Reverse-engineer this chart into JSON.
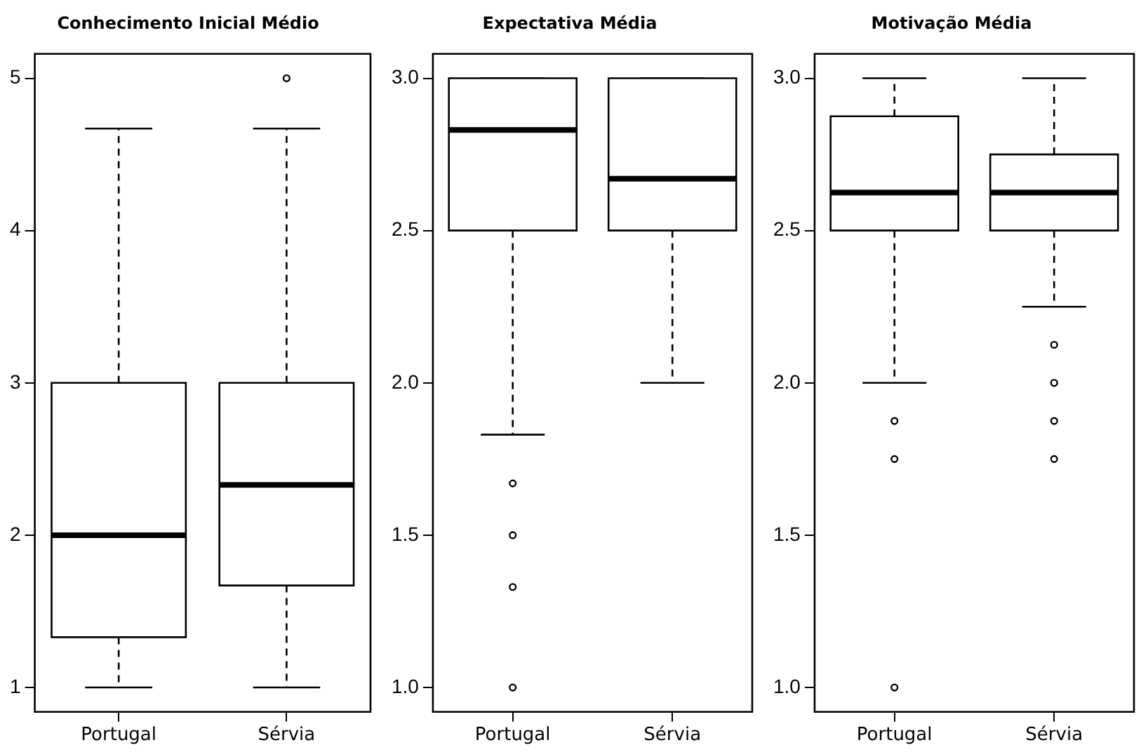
{
  "chart_data": [
    {
      "type": "box",
      "title": "Conhecimento Inicial Médio",
      "categories": [
        "Portugal",
        "Sérvia"
      ],
      "ylim": [
        0.84,
        5.16
      ],
      "yticks": [
        1,
        2,
        3,
        4,
        5
      ],
      "grid": false,
      "boxes": [
        {
          "low": 1,
          "q1": 1.33,
          "median": 2,
          "q3": 3,
          "high": 4.67
        },
        {
          "low": 1,
          "q1": 1.67,
          "median": 2.33,
          "q3": 3,
          "high": 4.67,
          "outliers": [
            5
          ]
        }
      ]
    },
    {
      "type": "box",
      "title": "Expectativa Média",
      "categories": [
        "Portugal",
        "Sérvia"
      ],
      "ylim": [
        0.92,
        3.08
      ],
      "yticks": [
        {
          "value": 1,
          "label": "1.0"
        },
        1.5,
        {
          "value": 2,
          "label": "2.0"
        },
        2.5,
        {
          "value": 3,
          "label": "3.0"
        }
      ],
      "grid": false,
      "boxes": [
        {
          "low": 1.83,
          "q1": 2.5,
          "median": 2.83,
          "q3": 3,
          "high": 3,
          "outliers": [
            1.67,
            1.5,
            1.33,
            1
          ]
        },
        {
          "low": 2,
          "q1": 2.5,
          "median": 2.67,
          "q3": 3,
          "high": 3
        }
      ]
    },
    {
      "type": "box",
      "title": "Motivação Média",
      "categories": [
        "Portugal",
        "Sérvia"
      ],
      "ylim": [
        0.92,
        3.08
      ],
      "yticks": [
        {
          "value": 1,
          "label": "1.0"
        },
        1.5,
        {
          "value": 2,
          "label": "2.0"
        },
        2.5,
        {
          "value": 3,
          "label": "3.0"
        }
      ],
      "grid": false,
      "boxes": [
        {
          "low": 2,
          "q1": 2.5,
          "median": 2.625,
          "q3": 2.875,
          "high": 3,
          "outliers": [
            1.875,
            1.75,
            1
          ]
        },
        {
          "low": 2.25,
          "q1": 2.5,
          "median": 2.625,
          "q3": 2.75,
          "high": 3,
          "outliers": [
            2.125,
            2,
            1.875,
            1.75
          ]
        }
      ]
    }
  ]
}
